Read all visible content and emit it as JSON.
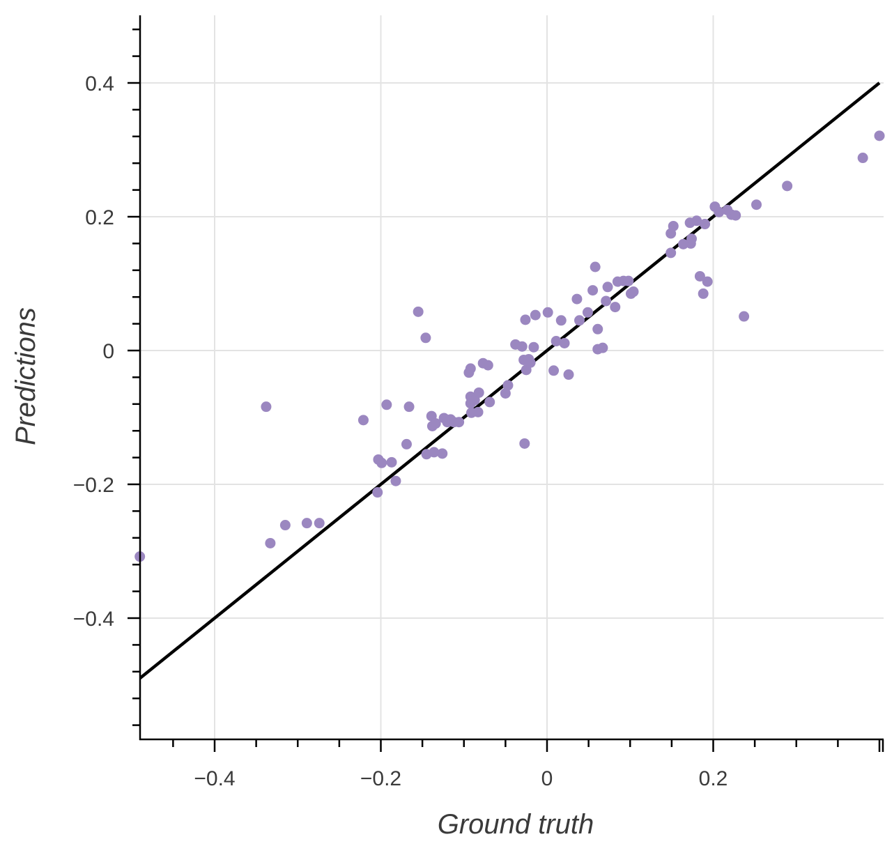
{
  "chart_data": {
    "type": "scatter",
    "title": "",
    "xlabel": "Ground truth",
    "ylabel": "Predictions",
    "xlim": [
      -0.49,
      0.4
    ],
    "ylim": [
      -0.58,
      0.5
    ],
    "grid": true,
    "legend": "none",
    "x_ticks": [
      {
        "value": -0.4,
        "label": "−0.4"
      },
      {
        "value": -0.2,
        "label": "−0.2"
      },
      {
        "value": 0,
        "label": "0"
      },
      {
        "value": 0.2,
        "label": "0.2"
      }
    ],
    "y_ticks": [
      {
        "value": 0.4,
        "label": "0.4"
      },
      {
        "value": 0.2,
        "label": "0.2"
      },
      {
        "value": 0,
        "label": "0"
      },
      {
        "value": -0.2,
        "label": "−0.2"
      },
      {
        "value": -0.4,
        "label": "−0.4"
      }
    ],
    "reference_line": {
      "type": "identity",
      "x": [
        -0.49,
        0.4
      ],
      "y": [
        -0.49,
        0.4
      ],
      "color": "#000000"
    },
    "point_color": "#9b87c0",
    "series": [
      {
        "points": [
          [
            -0.49,
            -0.308
          ],
          [
            -0.338,
            -0.084
          ],
          [
            -0.333,
            -0.288
          ],
          [
            -0.315,
            -0.261
          ],
          [
            -0.289,
            -0.258
          ],
          [
            -0.274,
            -0.258
          ],
          [
            -0.221,
            -0.104
          ],
          [
            -0.203,
            -0.163
          ],
          [
            -0.204,
            -0.212
          ],
          [
            -0.199,
            -0.168
          ],
          [
            -0.193,
            -0.081
          ],
          [
            -0.187,
            -0.167
          ],
          [
            -0.182,
            -0.195
          ],
          [
            -0.169,
            -0.14
          ],
          [
            -0.166,
            -0.084
          ],
          [
            -0.155,
            0.058
          ],
          [
            -0.146,
            0.019
          ],
          [
            -0.145,
            -0.155
          ],
          [
            -0.139,
            -0.098
          ],
          [
            -0.138,
            -0.113
          ],
          [
            -0.136,
            -0.152
          ],
          [
            -0.134,
            -0.109
          ],
          [
            -0.126,
            -0.154
          ],
          [
            -0.124,
            -0.101
          ],
          [
            -0.12,
            -0.107
          ],
          [
            -0.116,
            -0.103
          ],
          [
            -0.112,
            -0.107
          ],
          [
            -0.106,
            -0.107
          ],
          [
            -0.094,
            -0.033
          ],
          [
            -0.092,
            -0.027
          ],
          [
            -0.092,
            -0.069
          ],
          [
            -0.092,
            -0.079
          ],
          [
            -0.091,
            -0.093
          ],
          [
            -0.087,
            -0.074
          ],
          [
            -0.083,
            -0.092
          ],
          [
            -0.082,
            -0.063
          ],
          [
            -0.077,
            -0.019
          ],
          [
            -0.071,
            -0.022
          ],
          [
            -0.069,
            -0.077
          ],
          [
            -0.05,
            -0.064
          ],
          [
            -0.047,
            -0.052
          ],
          [
            -0.038,
            0.009
          ],
          [
            -0.03,
            0.006
          ],
          [
            -0.027,
            -0.139
          ],
          [
            -0.028,
            -0.014
          ],
          [
            -0.026,
            0.046
          ],
          [
            -0.025,
            -0.029
          ],
          [
            -0.022,
            -0.013
          ],
          [
            -0.02,
            -0.018
          ],
          [
            -0.016,
            0.005
          ],
          [
            -0.014,
            0.053
          ],
          [
            0.001,
            0.057
          ],
          [
            0.008,
            -0.03
          ],
          [
            0.011,
            0.014
          ],
          [
            0.017,
            0.045
          ],
          [
            0.021,
            0.011
          ],
          [
            0.026,
            -0.036
          ],
          [
            0.036,
            0.077
          ],
          [
            0.039,
            0.045
          ],
          [
            0.049,
            0.057
          ],
          [
            0.055,
            0.09
          ],
          [
            0.058,
            0.125
          ],
          [
            0.061,
            0.032
          ],
          [
            0.061,
            0.002
          ],
          [
            0.067,
            0.004
          ],
          [
            0.071,
            0.074
          ],
          [
            0.073,
            0.095
          ],
          [
            0.082,
            0.065
          ],
          [
            0.085,
            0.103
          ],
          [
            0.092,
            0.104
          ],
          [
            0.098,
            0.104
          ],
          [
            0.101,
            0.085
          ],
          [
            0.104,
            0.088
          ],
          [
            0.149,
            0.146
          ],
          [
            0.149,
            0.175
          ],
          [
            0.152,
            0.186
          ],
          [
            0.164,
            0.159
          ],
          [
            0.172,
            0.191
          ],
          [
            0.173,
            0.16
          ],
          [
            0.174,
            0.167
          ],
          [
            0.18,
            0.194
          ],
          [
            0.184,
            0.111
          ],
          [
            0.188,
            0.085
          ],
          [
            0.19,
            0.189
          ],
          [
            0.193,
            0.103
          ],
          [
            0.202,
            0.215
          ],
          [
            0.207,
            0.207
          ],
          [
            0.217,
            0.21
          ],
          [
            0.222,
            0.203
          ],
          [
            0.227,
            0.202
          ],
          [
            0.237,
            0.051
          ],
          [
            0.252,
            0.218
          ],
          [
            0.289,
            0.246
          ],
          [
            0.38,
            0.288
          ],
          [
            0.4,
            0.321
          ]
        ]
      }
    ]
  }
}
